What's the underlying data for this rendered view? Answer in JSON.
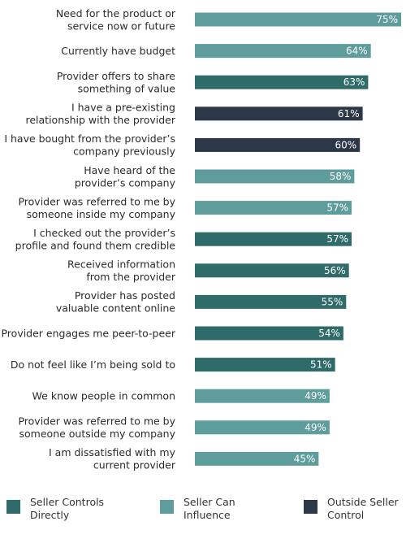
{
  "chart_data": {
    "type": "bar",
    "orientation": "horizontal",
    "xlim": [
      0,
      75
    ],
    "grid": false,
    "legend_position": "bottom",
    "categories": [
      [
        "Need for the product or",
        "service now or future"
      ],
      [
        "Currently have budget"
      ],
      [
        "Provider offers to share",
        "something of value"
      ],
      [
        "I have a pre-existing",
        "relationship with the provider"
      ],
      [
        "I have bought from the provider’s",
        "company previously"
      ],
      [
        "Have heard of the",
        "provider’s company"
      ],
      [
        "Provider was referred to me by",
        "someone inside my company"
      ],
      [
        "I checked out the provider’s",
        "profile and found them credible"
      ],
      [
        "Received information",
        "from the provider"
      ],
      [
        "Provider has posted",
        "valuable content online"
      ],
      [
        "Provider engages me peer-to-peer"
      ],
      [
        "Do not feel like I’m being sold to"
      ],
      [
        "We know people in common"
      ],
      [
        "Provider was referred to me by",
        "someone outside my company"
      ],
      [
        "I am dissatisfied with my",
        "current provider"
      ]
    ],
    "values": [
      75,
      64,
      63,
      61,
      60,
      58,
      57,
      57,
      56,
      55,
      54,
      51,
      49,
      49,
      45
    ],
    "value_labels": [
      "75%",
      "64%",
      "63%",
      "61%",
      "60%",
      "58%",
      "57%",
      "57%",
      "56%",
      "55%",
      "54%",
      "51%",
      "49%",
      "49%",
      "45%"
    ],
    "groups": [
      1,
      1,
      0,
      2,
      2,
      1,
      1,
      0,
      0,
      0,
      0,
      0,
      1,
      1,
      1
    ],
    "legend": [
      {
        "label": [
          "Seller Controls",
          "Directly"
        ],
        "color": "#2f6b69"
      },
      {
        "label": [
          "Seller Can",
          "Influence"
        ],
        "color": "#5f9c9c"
      },
      {
        "label": [
          "Outside Seller",
          "Control"
        ],
        "color": "#2c3848"
      }
    ]
  }
}
